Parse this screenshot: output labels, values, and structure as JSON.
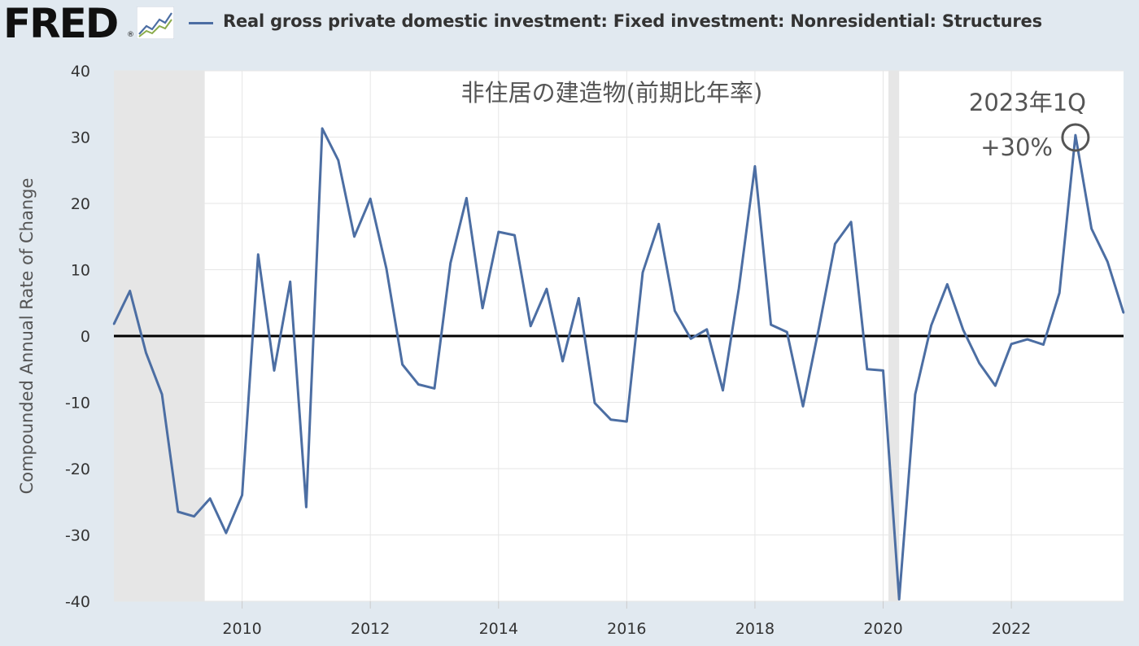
{
  "header": {
    "logo_text": "FRED",
    "logo_mark": "®",
    "logo_icon": "line-graph-icon",
    "series_title": "Real gross private domestic investment: Fixed investment: Nonresidential: Structures",
    "line_color": "#4c6ea3"
  },
  "chart_data": {
    "type": "line",
    "title": "非住居の建造物(前期比年率)",
    "ylabel": "Compounded Annual Rate of Change",
    "xlabel": "",
    "ylim": [
      -40,
      40
    ],
    "yticks": [
      40,
      30,
      20,
      10,
      0,
      -10,
      -20,
      -30,
      -40
    ],
    "ytick_labels": [
      "40",
      "30",
      "20",
      "10",
      "0",
      "-10",
      "-20",
      "-30",
      "-40"
    ],
    "xlim": [
      "2008-01",
      "2023-10"
    ],
    "xticks": [
      "2010",
      "2012",
      "2014",
      "2016",
      "2018",
      "2020",
      "2022"
    ],
    "grid": true,
    "recessions": [
      {
        "start": "2008-01",
        "end": "2009-06"
      },
      {
        "start": "2020-02",
        "end": "2020-04"
      }
    ],
    "recession_color": "#e6e6e6",
    "zero_line": true,
    "series": [
      {
        "name": "Real gross private domestic investment: Fixed investment: Nonresidential: Structures",
        "color": "#4c6ea3",
        "x": [
          "2008Q1",
          "2008Q2",
          "2008Q3",
          "2008Q4",
          "2009Q1",
          "2009Q2",
          "2009Q3",
          "2009Q4",
          "2010Q1",
          "2010Q2",
          "2010Q3",
          "2010Q4",
          "2011Q1",
          "2011Q2",
          "2011Q3",
          "2011Q4",
          "2012Q1",
          "2012Q2",
          "2012Q3",
          "2012Q4",
          "2013Q1",
          "2013Q2",
          "2013Q3",
          "2013Q4",
          "2014Q1",
          "2014Q2",
          "2014Q3",
          "2014Q4",
          "2015Q1",
          "2015Q2",
          "2015Q3",
          "2015Q4",
          "2016Q1",
          "2016Q2",
          "2016Q3",
          "2016Q4",
          "2017Q1",
          "2017Q2",
          "2017Q3",
          "2017Q4",
          "2018Q1",
          "2018Q2",
          "2018Q3",
          "2018Q4",
          "2019Q1",
          "2019Q2",
          "2019Q3",
          "2019Q4",
          "2020Q1",
          "2020Q2",
          "2020Q3",
          "2020Q4",
          "2021Q1",
          "2021Q2",
          "2021Q3",
          "2021Q4",
          "2022Q1",
          "2022Q2",
          "2022Q3",
          "2022Q4",
          "2023Q1",
          "2023Q2",
          "2023Q3",
          "2023Q4"
        ],
        "values": [
          1.8,
          6.8,
          -2.5,
          -8.8,
          -26.5,
          -27.2,
          -24.5,
          -29.7,
          -24.0,
          12.3,
          -5.2,
          8.2,
          -25.8,
          31.3,
          26.5,
          15.0,
          20.7,
          10.2,
          -4.3,
          -7.3,
          -7.9,
          11.0,
          20.8,
          4.2,
          15.7,
          15.2,
          1.5,
          7.1,
          -3.8,
          5.7,
          -10.1,
          -12.6,
          -12.9,
          9.6,
          16.9,
          3.8,
          -0.4,
          1.0,
          -8.2,
          7.2,
          25.6,
          1.7,
          0.6,
          -10.6,
          1.3,
          13.9,
          17.2,
          -5.0,
          -5.2,
          -39.7,
          -8.8,
          1.6,
          7.8,
          0.9,
          -4.1,
          -7.5,
          -1.2,
          -0.5,
          -1.3,
          6.5,
          30.3,
          16.2,
          11.2,
          3.5
        ]
      }
    ],
    "annotations": [
      {
        "text": "2023年1Q",
        "x": "2023Q1"
      },
      {
        "text": "+30%",
        "x": "2023Q1",
        "y": 30.3,
        "marker": "circle"
      }
    ]
  }
}
